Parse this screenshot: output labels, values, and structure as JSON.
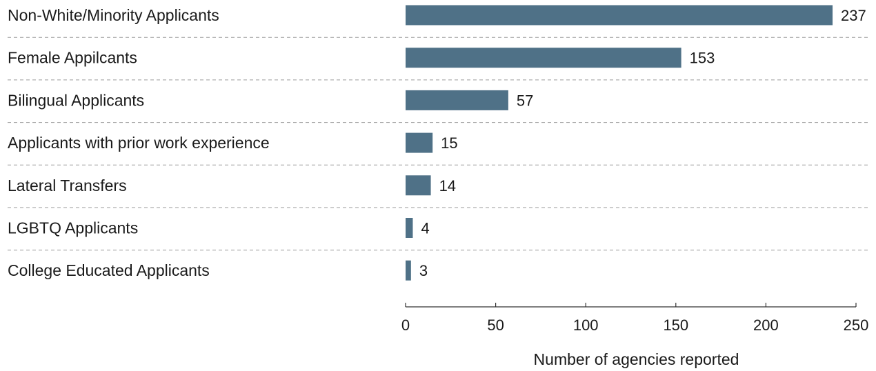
{
  "chart_data": {
    "type": "bar",
    "orientation": "horizontal",
    "categories": [
      "Non-White/Minority Applicants",
      "Female Appilcants",
      "Bilingual Applicants",
      "Applicants with prior work experience",
      "Lateral Transfers",
      "LGBTQ Applicants",
      "College Educated Applicants"
    ],
    "values": [
      237,
      153,
      57,
      15,
      14,
      4,
      3
    ],
    "value_labels": [
      "237",
      "153",
      "57",
      "15",
      "14",
      "4",
      "3"
    ],
    "xlabel": "Number of agencies reported",
    "xlim": [
      0,
      250
    ],
    "xticks": [
      0,
      50,
      100,
      150,
      200,
      250
    ],
    "xtick_labels": [
      "0",
      "50",
      "100",
      "150",
      "200",
      "250"
    ],
    "grid": "dashed separators between rows",
    "bar_color": "#4f7187"
  }
}
